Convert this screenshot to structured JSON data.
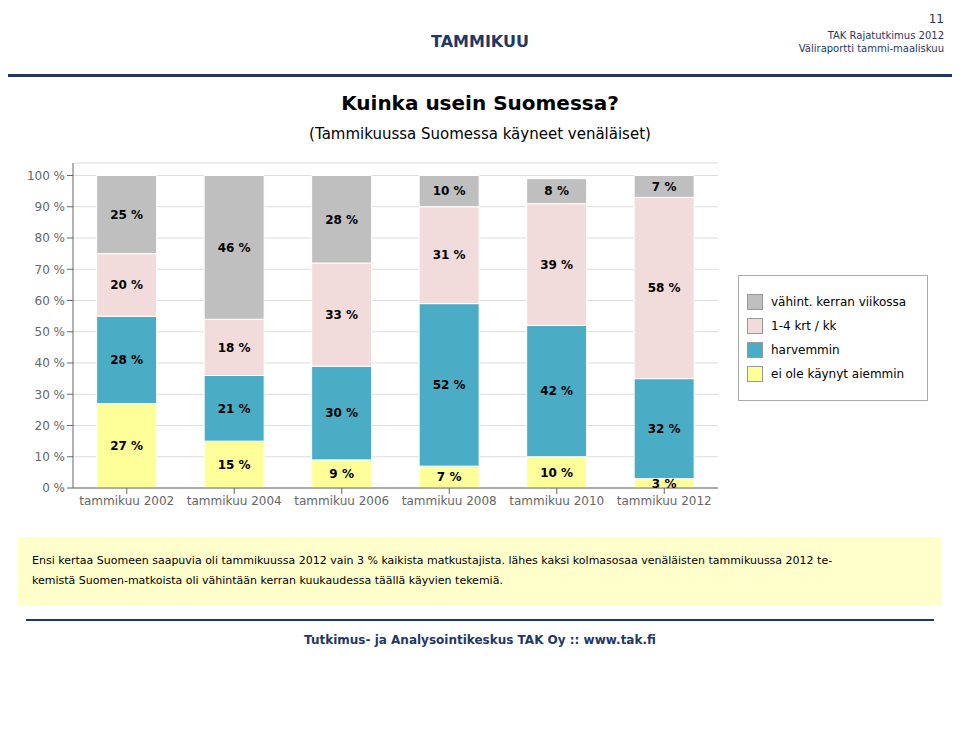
{
  "chart_data": {
    "type": "bar",
    "title": "Kuinka usein Suomessa?",
    "subtitle": "(Tammikuussa Suomessa käyneet venäläiset)",
    "annotations": [
      "TAMMIKUU",
      "11",
      "TAK Rajatutkimus 2012",
      "Väliraportti tammi-maaliskuu",
      "Ensi kertaa Suomeen saapuvia oli tammikuussa 2012 vain 3 % kaikista matkustajista. lähes kaksi kolmasosaa venäläisten tammikuussa 2012 te-\nkemistä Suomen-matkoista oli vähintään kerran kuukaudessa täällä käyvien tekemiä.",
      "Tutkimus- ja Analysointikeskus TAK Oy :: www.tak.fi"
    ],
    "categories": [
      "tammikuu 2002",
      "tammikuu 2004",
      "tammikuu 2006",
      "tammikuu 2008",
      "tammikuu 2010",
      "tammikuu 2012"
    ],
    "series": [
      {
        "name": "ei ole käynyt aiemmin",
        "color": "#FFFF99",
        "values": [
          27,
          15,
          9,
          7,
          10,
          3
        ],
        "value_labels": [
          "27 %",
          "15 %",
          "9 %",
          "7 %",
          "10 %",
          "3 %"
        ]
      },
      {
        "name": "harvemmin",
        "color": "#4BACC6",
        "values": [
          28,
          21,
          30,
          52,
          42,
          32
        ],
        "value_labels": [
          "28 %",
          "21 %",
          "30 %",
          "52 %",
          "42 %",
          "32 %"
        ]
      },
      {
        "name": "1-4 krt / kk",
        "color": "#F2DCDB",
        "values": [
          20,
          18,
          33,
          31,
          39,
          58
        ],
        "value_labels": [
          "20 %",
          "18 %",
          "33 %",
          "31 %",
          "39 %",
          "58 %"
        ]
      },
      {
        "name": "vähint. kerran viikossa",
        "color": "#BFBFBF",
        "values": [
          25,
          46,
          28,
          10,
          8,
          7
        ],
        "value_labels": [
          "25 %",
          "46 %",
          "28 %",
          "10 %",
          "8 %",
          "7 %"
        ]
      }
    ],
    "ylim": [
      0,
      104
    ],
    "yticks": [
      {
        "value": 0,
        "label": "0 %"
      },
      {
        "value": 10,
        "label": "10 %"
      },
      {
        "value": 20,
        "label": "20 %"
      },
      {
        "value": 30,
        "label": "30 %"
      },
      {
        "value": 40,
        "label": "40 %"
      },
      {
        "value": 50,
        "label": "50 %"
      },
      {
        "value": 60,
        "label": "60 %"
      },
      {
        "value": 70,
        "label": "70 %"
      },
      {
        "value": 80,
        "label": "80 %"
      },
      {
        "value": 90,
        "label": "90 %"
      },
      {
        "value": 100,
        "label": "100 %"
      }
    ],
    "grid": true,
    "stacked": true,
    "data_labels": true,
    "legend": "right"
  }
}
